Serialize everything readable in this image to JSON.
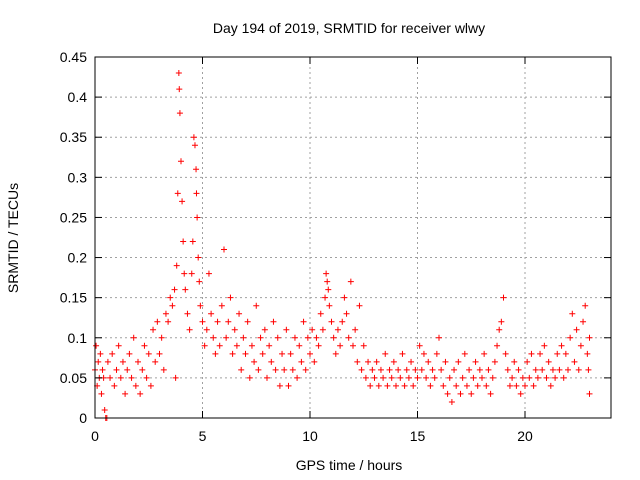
{
  "chart_data": {
    "type": "scatter",
    "title": "Day 194 of 2019, SRMTID for receiver wlwy",
    "xlabel": "GPS time / hours",
    "ylabel": "SRMTID / TECUs",
    "xlim": [
      0,
      24
    ],
    "ylim": [
      0,
      0.45
    ],
    "xticks": [
      0,
      5,
      10,
      15,
      20
    ],
    "xtick_labels": [
      "0",
      "5",
      "10",
      "15",
      "20"
    ],
    "yticks": [
      0,
      0.05,
      0.1,
      0.15,
      0.2,
      0.25,
      0.3,
      0.35,
      0.4,
      0.45
    ],
    "ytick_labels": [
      "0",
      "0.05",
      "0.1",
      "0.15",
      "0.2",
      "0.25",
      "0.3",
      "0.35",
      "0.4",
      "0.45"
    ],
    "grid": true,
    "marker": "+",
    "color": "#ff0000",
    "series": [
      {
        "name": "SRMTID",
        "points": [
          [
            0.0,
            0.06
          ],
          [
            0.05,
            0.09
          ],
          [
            0.1,
            0.04
          ],
          [
            0.15,
            0.07
          ],
          [
            0.2,
            0.05
          ],
          [
            0.25,
            0.08
          ],
          [
            0.3,
            0.03
          ],
          [
            0.35,
            0.06
          ],
          [
            0.4,
            0.05
          ],
          [
            0.45,
            0.01
          ],
          [
            0.5,
            0.0
          ],
          [
            0.55,
            0.0
          ],
          [
            0.6,
            0.07
          ],
          [
            0.7,
            0.05
          ],
          [
            0.8,
            0.08
          ],
          [
            0.9,
            0.04
          ],
          [
            1.0,
            0.06
          ],
          [
            1.1,
            0.09
          ],
          [
            1.2,
            0.05
          ],
          [
            1.3,
            0.07
          ],
          [
            1.4,
            0.03
          ],
          [
            1.5,
            0.06
          ],
          [
            1.6,
            0.08
          ],
          [
            1.7,
            0.05
          ],
          [
            1.8,
            0.1
          ],
          [
            1.9,
            0.04
          ],
          [
            2.0,
            0.07
          ],
          [
            2.1,
            0.03
          ],
          [
            2.2,
            0.06
          ],
          [
            2.3,
            0.09
          ],
          [
            2.4,
            0.05
          ],
          [
            2.5,
            0.08
          ],
          [
            2.6,
            0.04
          ],
          [
            2.7,
            0.11
          ],
          [
            2.8,
            0.07
          ],
          [
            2.9,
            0.12
          ],
          [
            3.0,
            0.08
          ],
          [
            3.1,
            0.1
          ],
          [
            3.2,
            0.06
          ],
          [
            3.3,
            0.13
          ],
          [
            3.4,
            0.12
          ],
          [
            3.5,
            0.15
          ],
          [
            3.6,
            0.14
          ],
          [
            3.7,
            0.16
          ],
          [
            3.75,
            0.05
          ],
          [
            3.8,
            0.19
          ],
          [
            3.85,
            0.28
          ],
          [
            3.9,
            0.43
          ],
          [
            3.92,
            0.41
          ],
          [
            3.95,
            0.38
          ],
          [
            4.0,
            0.32
          ],
          [
            4.05,
            0.27
          ],
          [
            4.1,
            0.22
          ],
          [
            4.15,
            0.18
          ],
          [
            4.2,
            0.16
          ],
          [
            4.3,
            0.13
          ],
          [
            4.4,
            0.11
          ],
          [
            4.5,
            0.18
          ],
          [
            4.55,
            0.22
          ],
          [
            4.6,
            0.35
          ],
          [
            4.65,
            0.34
          ],
          [
            4.7,
            0.31
          ],
          [
            4.72,
            0.28
          ],
          [
            4.75,
            0.25
          ],
          [
            4.8,
            0.2
          ],
          [
            4.85,
            0.17
          ],
          [
            4.9,
            0.14
          ],
          [
            5.0,
            0.12
          ],
          [
            5.1,
            0.09
          ],
          [
            5.2,
            0.11
          ],
          [
            5.3,
            0.18
          ],
          [
            5.4,
            0.13
          ],
          [
            5.5,
            0.1
          ],
          [
            5.6,
            0.08
          ],
          [
            5.7,
            0.12
          ],
          [
            5.8,
            0.09
          ],
          [
            5.9,
            0.14
          ],
          [
            6.0,
            0.21
          ],
          [
            6.1,
            0.1
          ],
          [
            6.2,
            0.12
          ],
          [
            6.3,
            0.15
          ],
          [
            6.4,
            0.08
          ],
          [
            6.5,
            0.11
          ],
          [
            6.6,
            0.09
          ],
          [
            6.7,
            0.13
          ],
          [
            6.8,
            0.06
          ],
          [
            6.9,
            0.1
          ],
          [
            7.0,
            0.08
          ],
          [
            7.1,
            0.12
          ],
          [
            7.2,
            0.05
          ],
          [
            7.3,
            0.09
          ],
          [
            7.4,
            0.07
          ],
          [
            7.5,
            0.14
          ],
          [
            7.6,
            0.06
          ],
          [
            7.7,
            0.1
          ],
          [
            7.8,
            0.08
          ],
          [
            7.9,
            0.11
          ],
          [
            8.0,
            0.05
          ],
          [
            8.1,
            0.09
          ],
          [
            8.2,
            0.07
          ],
          [
            8.3,
            0.12
          ],
          [
            8.4,
            0.06
          ],
          [
            8.5,
            0.1
          ],
          [
            8.6,
            0.04
          ],
          [
            8.7,
            0.08
          ],
          [
            8.8,
            0.06
          ],
          [
            8.9,
            0.11
          ],
          [
            9.0,
            0.04
          ],
          [
            9.1,
            0.08
          ],
          [
            9.2,
            0.06
          ],
          [
            9.3,
            0.1
          ],
          [
            9.4,
            0.05
          ],
          [
            9.5,
            0.09
          ],
          [
            9.6,
            0.07
          ],
          [
            9.7,
            0.12
          ],
          [
            9.8,
            0.06
          ],
          [
            9.9,
            0.1
          ],
          [
            10.0,
            0.08
          ],
          [
            10.1,
            0.11
          ],
          [
            10.2,
            0.07
          ],
          [
            10.3,
            0.1
          ],
          [
            10.4,
            0.09
          ],
          [
            10.5,
            0.13
          ],
          [
            10.6,
            0.11
          ],
          [
            10.7,
            0.15
          ],
          [
            10.75,
            0.18
          ],
          [
            10.8,
            0.17
          ],
          [
            10.85,
            0.16
          ],
          [
            10.9,
            0.14
          ],
          [
            11.0,
            0.12
          ],
          [
            11.1,
            0.1
          ],
          [
            11.2,
            0.08
          ],
          [
            11.3,
            0.11
          ],
          [
            11.4,
            0.09
          ],
          [
            11.5,
            0.12
          ],
          [
            11.6,
            0.15
          ],
          [
            11.7,
            0.13
          ],
          [
            11.8,
            0.1
          ],
          [
            11.9,
            0.17
          ],
          [
            12.0,
            0.09
          ],
          [
            12.1,
            0.11
          ],
          [
            12.2,
            0.07
          ],
          [
            12.3,
            0.14
          ],
          [
            12.4,
            0.06
          ],
          [
            12.5,
            0.09
          ],
          [
            12.6,
            0.05
          ],
          [
            12.7,
            0.07
          ],
          [
            12.8,
            0.04
          ],
          [
            12.9,
            0.06
          ],
          [
            13.0,
            0.05
          ],
          [
            13.1,
            0.07
          ],
          [
            13.2,
            0.04
          ],
          [
            13.3,
            0.06
          ],
          [
            13.4,
            0.05
          ],
          [
            13.5,
            0.08
          ],
          [
            13.6,
            0.04
          ],
          [
            13.7,
            0.06
          ],
          [
            13.8,
            0.05
          ],
          [
            13.9,
            0.07
          ],
          [
            14.0,
            0.04
          ],
          [
            14.1,
            0.06
          ],
          [
            14.2,
            0.05
          ],
          [
            14.3,
            0.08
          ],
          [
            14.4,
            0.04
          ],
          [
            14.5,
            0.06
          ],
          [
            14.6,
            0.05
          ],
          [
            14.7,
            0.07
          ],
          [
            14.8,
            0.04
          ],
          [
            14.9,
            0.06
          ],
          [
            15.0,
            0.05
          ],
          [
            15.1,
            0.09
          ],
          [
            15.2,
            0.06
          ],
          [
            15.3,
            0.08
          ],
          [
            15.4,
            0.05
          ],
          [
            15.5,
            0.07
          ],
          [
            15.6,
            0.04
          ],
          [
            15.7,
            0.06
          ],
          [
            15.8,
            0.05
          ],
          [
            15.9,
            0.08
          ],
          [
            16.0,
            0.1
          ],
          [
            16.1,
            0.06
          ],
          [
            16.2,
            0.04
          ],
          [
            16.3,
            0.07
          ],
          [
            16.4,
            0.03
          ],
          [
            16.5,
            0.05
          ],
          [
            16.6,
            0.02
          ],
          [
            16.7,
            0.06
          ],
          [
            16.8,
            0.04
          ],
          [
            16.9,
            0.07
          ],
          [
            17.0,
            0.03
          ],
          [
            17.1,
            0.05
          ],
          [
            17.2,
            0.08
          ],
          [
            17.3,
            0.04
          ],
          [
            17.4,
            0.06
          ],
          [
            17.5,
            0.03
          ],
          [
            17.6,
            0.05
          ],
          [
            17.7,
            0.07
          ],
          [
            17.8,
            0.04
          ],
          [
            17.9,
            0.06
          ],
          [
            18.0,
            0.05
          ],
          [
            18.1,
            0.08
          ],
          [
            18.2,
            0.04
          ],
          [
            18.3,
            0.06
          ],
          [
            18.4,
            0.03
          ],
          [
            18.5,
            0.05
          ],
          [
            18.6,
            0.07
          ],
          [
            18.7,
            0.09
          ],
          [
            18.8,
            0.11
          ],
          [
            18.9,
            0.12
          ],
          [
            19.0,
            0.15
          ],
          [
            19.1,
            0.08
          ],
          [
            19.2,
            0.06
          ],
          [
            19.3,
            0.04
          ],
          [
            19.4,
            0.05
          ],
          [
            19.5,
            0.07
          ],
          [
            19.6,
            0.04
          ],
          [
            19.7,
            0.06
          ],
          [
            19.8,
            0.03
          ],
          [
            19.9,
            0.05
          ],
          [
            20.0,
            0.04
          ],
          [
            20.1,
            0.07
          ],
          [
            20.2,
            0.05
          ],
          [
            20.3,
            0.08
          ],
          [
            20.4,
            0.04
          ],
          [
            20.5,
            0.06
          ],
          [
            20.6,
            0.05
          ],
          [
            20.7,
            0.08
          ],
          [
            20.8,
            0.06
          ],
          [
            20.9,
            0.09
          ],
          [
            21.0,
            0.05
          ],
          [
            21.1,
            0.07
          ],
          [
            21.2,
            0.04
          ],
          [
            21.3,
            0.06
          ],
          [
            21.4,
            0.05
          ],
          [
            21.5,
            0.08
          ],
          [
            21.6,
            0.06
          ],
          [
            21.7,
            0.09
          ],
          [
            21.8,
            0.05
          ],
          [
            21.9,
            0.08
          ],
          [
            22.0,
            0.06
          ],
          [
            22.1,
            0.1
          ],
          [
            22.2,
            0.13
          ],
          [
            22.3,
            0.07
          ],
          [
            22.4,
            0.11
          ],
          [
            22.5,
            0.06
          ],
          [
            22.6,
            0.09
          ],
          [
            22.7,
            0.12
          ],
          [
            22.8,
            0.14
          ],
          [
            22.9,
            0.08
          ],
          [
            23.0,
            0.1
          ],
          [
            23.0,
            0.03
          ],
          [
            22.95,
            0.06
          ]
        ]
      }
    ]
  }
}
